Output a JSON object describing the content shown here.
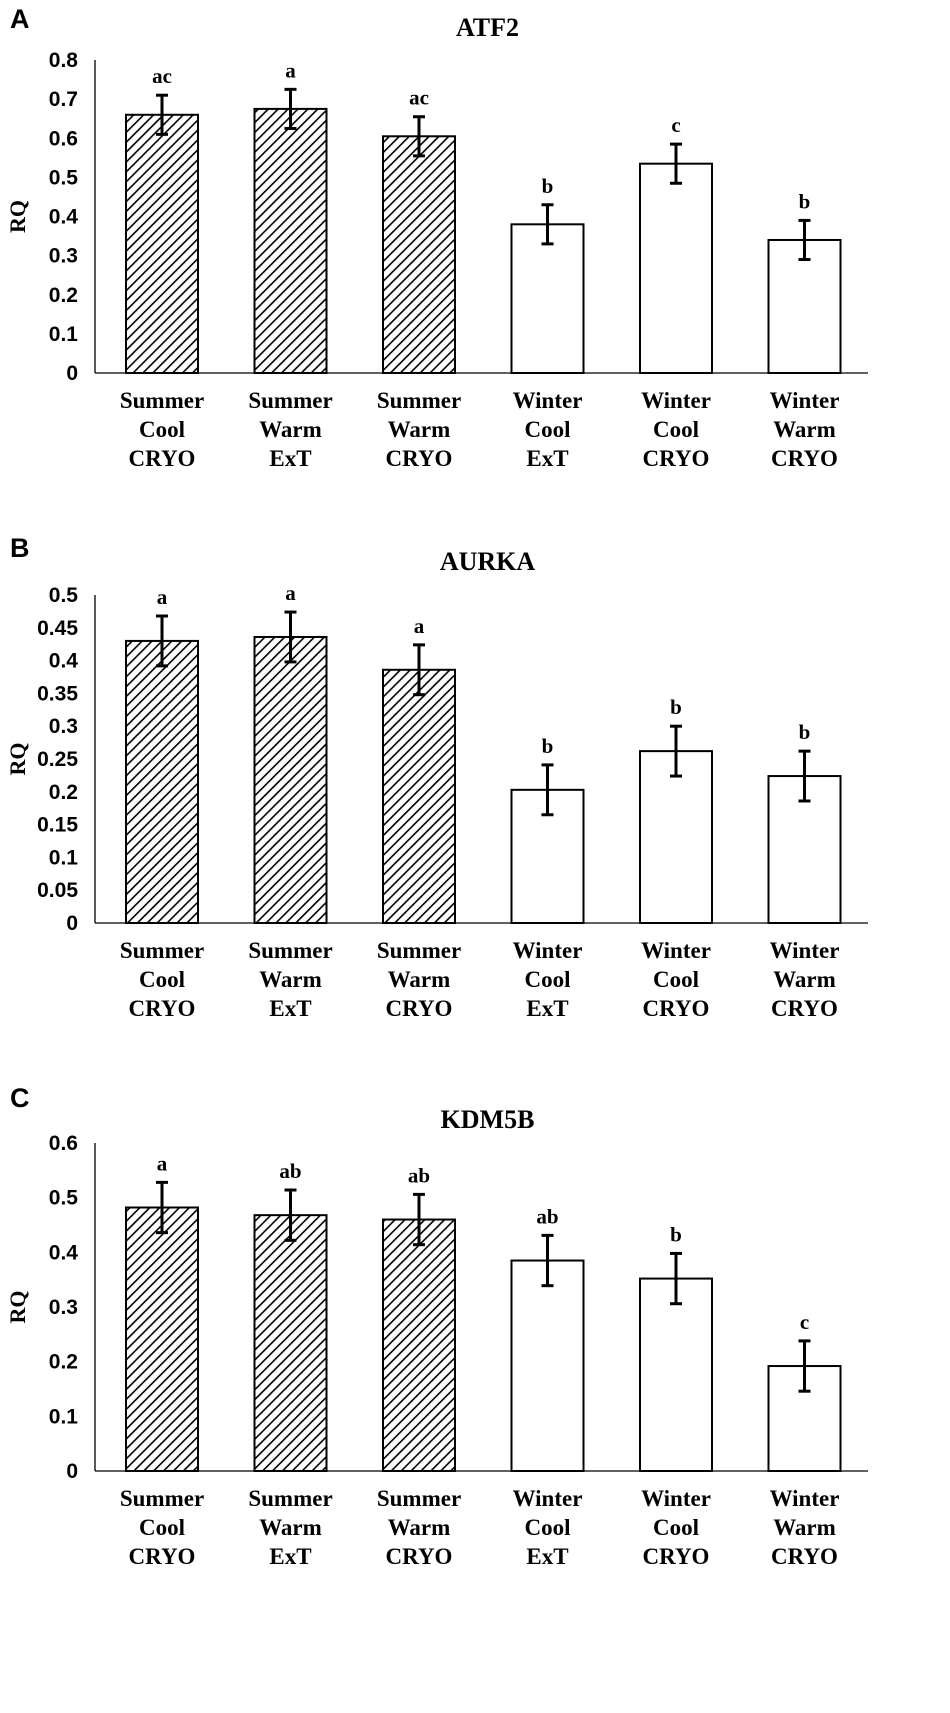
{
  "chart_data": [
    {
      "type": "bar",
      "panel": "A",
      "title": "ATF2",
      "ylabel": "RQ",
      "categories": [
        "Summer Cool CRYO",
        "Summer Warm ExT",
        "Summer Warm CRYO",
        "Winter Cool ExT",
        "Winter Cool CRYO",
        "Winter Warm CRYO"
      ],
      "category_lines": [
        [
          "Summer",
          "Cool",
          "CRYO"
        ],
        [
          "Summer",
          "Warm",
          "ExT"
        ],
        [
          "Summer",
          "Warm",
          "CRYO"
        ],
        [
          "Winter",
          "Cool",
          "ExT"
        ],
        [
          "Winter",
          "Cool",
          "CRYO"
        ],
        [
          "Winter",
          "Warm",
          "CRYO"
        ]
      ],
      "values": [
        0.66,
        0.675,
        0.605,
        0.38,
        0.535,
        0.34
      ],
      "errors": [
        0.05,
        0.05,
        0.05,
        0.05,
        0.05,
        0.05
      ],
      "significance": [
        "ac",
        "a",
        "ac",
        "b",
        "c",
        "b"
      ],
      "patterns": [
        "hatched",
        "hatched",
        "hatched",
        "plain",
        "plain",
        "plain"
      ],
      "ylim": [
        0,
        0.8
      ],
      "yticks": [
        "0",
        "0.1",
        "0.2",
        "0.3",
        "0.4",
        "0.5",
        "0.6",
        "0.7",
        "0.8"
      ],
      "grid": false
    },
    {
      "type": "bar",
      "panel": "B",
      "title": "AURKA",
      "ylabel": "RQ",
      "categories": [
        "Summer Cool CRYO",
        "Summer Warm ExT",
        "Summer Warm CRYO",
        "Winter Cool ExT",
        "Winter Cool CRYO",
        "Winter Warm CRYO"
      ],
      "category_lines": [
        [
          "Summer",
          "Cool",
          "CRYO"
        ],
        [
          "Summer",
          "Warm",
          "ExT"
        ],
        [
          "Summer",
          "Warm",
          "CRYO"
        ],
        [
          "Winter",
          "Cool",
          "ExT"
        ],
        [
          "Winter",
          "Cool",
          "CRYO"
        ],
        [
          "Winter",
          "Warm",
          "CRYO"
        ]
      ],
      "values": [
        0.43,
        0.436,
        0.386,
        0.203,
        0.262,
        0.224
      ],
      "errors": [
        0.038,
        0.038,
        0.038,
        0.038,
        0.038,
        0.038
      ],
      "significance": [
        "a",
        "a",
        "a",
        "b",
        "b",
        "b"
      ],
      "patterns": [
        "hatched",
        "hatched",
        "hatched",
        "plain",
        "plain",
        "plain"
      ],
      "ylim": [
        0,
        0.5
      ],
      "yticks": [
        "0",
        "0.05",
        "0.1",
        "0.15",
        "0.2",
        "0.25",
        "0.3",
        "0.35",
        "0.4",
        "0.45",
        "0.5"
      ],
      "grid": false
    },
    {
      "type": "bar",
      "panel": "C",
      "title": "KDM5B",
      "ylabel": "RQ",
      "categories": [
        "Summer Cool CRYO",
        "Summer Warm ExT",
        "Summer Warm CRYO",
        "Winter Cool ExT",
        "Winter Cool CRYO",
        "Winter Warm CRYO"
      ],
      "category_lines": [
        [
          "Summer",
          "Cool",
          "CRYO"
        ],
        [
          "Summer",
          "Warm",
          "ExT"
        ],
        [
          "Summer",
          "Warm",
          "CRYO"
        ],
        [
          "Winter",
          "Cool",
          "ExT"
        ],
        [
          "Winter",
          "Cool",
          "CRYO"
        ],
        [
          "Winter",
          "Warm",
          "CRYO"
        ]
      ],
      "values": [
        0.482,
        0.468,
        0.46,
        0.385,
        0.352,
        0.192
      ],
      "errors": [
        0.046,
        0.046,
        0.046,
        0.046,
        0.046,
        0.046
      ],
      "significance": [
        "a",
        "ab",
        "ab",
        "ab",
        "b",
        "c"
      ],
      "patterns": [
        "hatched",
        "hatched",
        "hatched",
        "plain",
        "plain",
        "plain"
      ],
      "ylim": [
        0,
        0.6
      ],
      "yticks": [
        "0",
        "0.1",
        "0.2",
        "0.3",
        "0.4",
        "0.5",
        "0.6"
      ],
      "grid": false
    }
  ]
}
